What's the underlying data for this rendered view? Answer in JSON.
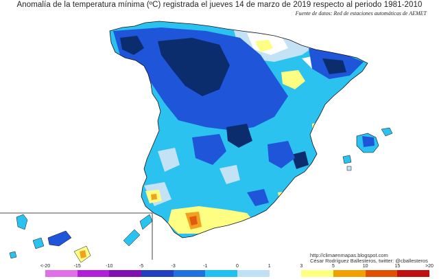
{
  "title": "Anomalía de la temperatura mínima (ºC) registrada el jueves 14 de marzo de 2019 respecto al periodo 1981-2010",
  "source": "Fuente de datos: Red de estaciones automáticas de AEMET",
  "credit": {
    "url": "http://climaenmapas.blogspot.com",
    "author": "César Rodríguez Ballesteros, twitter: @cballesteros"
  },
  "legend": {
    "labels": [
      "<-20",
      "-15",
      "-10",
      "-5",
      "-3",
      "-1",
      "0",
      "1",
      "3",
      "5",
      "10",
      "15",
      ">20"
    ],
    "colors": [
      "#e070e8",
      "#b020d8",
      "#8010b0",
      "#2040c0",
      "#2070e0",
      "#20c0f0",
      "#c0e0f8",
      "#ffffff",
      "#ffff80",
      "#f0a000",
      "#e05000",
      "#c01010",
      "#8a1010",
      "#6a3a10"
    ]
  },
  "colors": {
    "deep_blue": "#0b2d6e",
    "blue": "#1f55d8",
    "mid_blue": "#2f86e8",
    "cyan": "#2bc2f0",
    "light_blue": "#c4e2f6",
    "white": "#ffffff",
    "yellow": "#fefe82",
    "orange": "#f2a020",
    "red_orange": "#e05a10"
  }
}
